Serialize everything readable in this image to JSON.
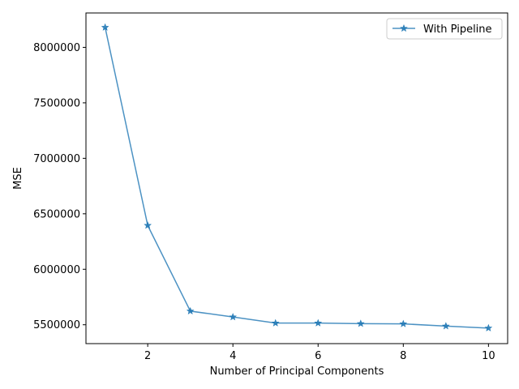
{
  "chart_data": {
    "type": "line",
    "title": "",
    "xlabel": "Number of Principal Components",
    "ylabel": "MSE",
    "x": [
      1,
      2,
      3,
      4,
      5,
      6,
      7,
      8,
      9,
      10
    ],
    "series": [
      {
        "name": "With Pipeline",
        "values": [
          8180000,
          6395000,
          5623000,
          5570000,
          5515000,
          5515000,
          5510000,
          5508000,
          5488000,
          5470000
        ],
        "color": "#1f77b4",
        "marker": "star"
      }
    ],
    "xlim": [
      0.55,
      10.45
    ],
    "ylim": [
      5330000,
      8310000
    ],
    "xticks": [
      2,
      4,
      6,
      8,
      10
    ],
    "yticks": [
      5500000,
      6000000,
      6500000,
      7000000,
      7500000,
      8000000
    ],
    "legend_position": "top-right",
    "grid": false
  }
}
